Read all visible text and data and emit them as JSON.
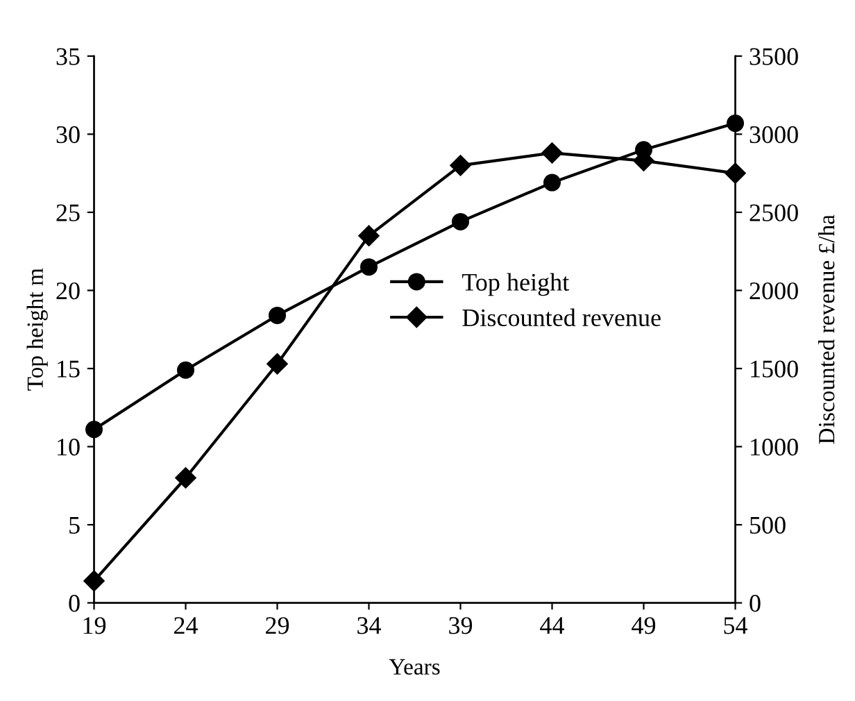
{
  "chart_data": {
    "type": "line",
    "xlabel": "Years",
    "ylabel": "Top height m",
    "y2label": "Discounted revenue £/ha",
    "x": [
      19,
      24,
      29,
      34,
      39,
      44,
      49,
      54
    ],
    "series": [
      {
        "name": "Top height",
        "color": "#000000",
        "marker": "circle",
        "values": [
          11.1,
          14.9,
          18.4,
          21.5,
          24.4,
          26.9,
          29.0,
          30.7
        ]
      },
      {
        "name": "Discounted revenue",
        "color": "#000000",
        "marker": "diamond",
        "axis": "y2",
        "values": [
          140,
          800,
          1530,
          2350,
          2800,
          2880,
          2830,
          2750
        ]
      }
    ],
    "xlim": [
      19,
      54
    ],
    "xticks": [
      19,
      24,
      29,
      34,
      39,
      44,
      49,
      54
    ],
    "ylim": [
      0,
      35
    ],
    "yticks": [
      0,
      5,
      10,
      15,
      20,
      25,
      30,
      35
    ],
    "y2lim": [
      0,
      3500
    ],
    "y2ticks": [
      0,
      500,
      1000,
      1500,
      2000,
      2500,
      3000,
      3500
    ],
    "grid": false,
    "legend": "right",
    "line_style": "solid"
  }
}
